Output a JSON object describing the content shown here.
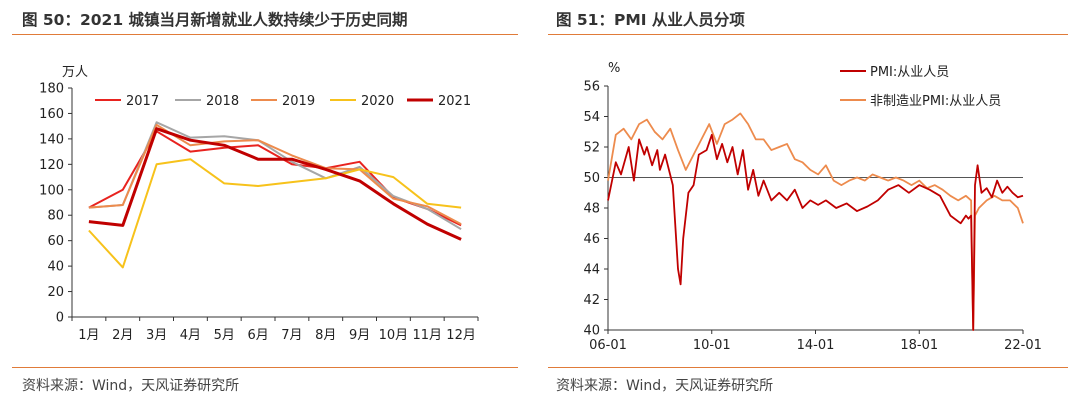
{
  "left_panel": {
    "title": "图 50：2021 城镇当月新增就业人数持续少于历史同期",
    "source": "资料来源：Wind，天风证券研究所"
  },
  "right_panel": {
    "title": "图 51：PMI 从业人员分项",
    "source": "资料来源：Wind，天风证券研究所"
  },
  "colors": {
    "accent_rule": "#e07b39",
    "s2017": "#e8231f",
    "s2018": "#a6a6a6",
    "s2019": "#ed8b4d",
    "s2020": "#f7c21b",
    "s2021": "#c00000",
    "pmi": "#c00000",
    "nonmfg": "#ed8b4d"
  },
  "chart_data": [
    {
      "type": "line",
      "ylabel": "万人",
      "ylim": [
        0,
        180
      ],
      "yticks": [
        0,
        20,
        40,
        60,
        80,
        100,
        120,
        140,
        160,
        180
      ],
      "categories": [
        "1月",
        "2月",
        "3月",
        "4月",
        "5月",
        "6月",
        "7月",
        "8月",
        "9月",
        "10月",
        "11月",
        "12月"
      ],
      "grid": false,
      "legend": "top",
      "series": [
        {
          "name": "2017",
          "values": [
            86,
            100,
            146,
            130,
            133,
            135,
            120,
            117,
            122,
            94,
            85,
            72
          ]
        },
        {
          "name": "2018",
          "values": [
            86,
            88,
            153,
            141,
            142,
            139,
            122,
            109,
            118,
            95,
            85,
            69
          ]
        },
        {
          "name": "2019",
          "values": [
            86,
            88,
            151,
            135,
            138,
            139,
            127,
            117,
            116,
            93,
            87,
            73
          ]
        },
        {
          "name": "2020",
          "values": [
            68,
            39,
            120,
            124,
            105,
            103,
            106,
            109,
            116,
            110,
            89,
            86
          ]
        },
        {
          "name": "2021",
          "values": [
            75,
            72,
            148,
            139,
            135,
            124,
            124,
            116,
            107,
            89,
            73,
            61
          ]
        }
      ]
    },
    {
      "type": "line",
      "ylabel": "%",
      "ylim": [
        40,
        56
      ],
      "yticks": [
        40,
        42,
        44,
        46,
        48,
        50,
        52,
        54,
        56
      ],
      "xlim": [
        2006.0,
        2022.0
      ],
      "xticks": [
        "06-01",
        "10-01",
        "14-01",
        "18-01",
        "22-01"
      ],
      "xtick_values": [
        2006,
        2010,
        2014,
        2018,
        2022
      ],
      "reference_line": 50,
      "grid": false,
      "legend": "top-right",
      "series": [
        {
          "name": "PMI:从业人员",
          "x": [
            2006.0,
            2006.3,
            2006.5,
            2006.8,
            2007.0,
            2007.2,
            2007.4,
            2007.5,
            2007.7,
            2007.9,
            2008.0,
            2008.2,
            2008.5,
            2008.7,
            2008.8,
            2008.9,
            2009.1,
            2009.3,
            2009.5,
            2009.8,
            2010.0,
            2010.2,
            2010.4,
            2010.6,
            2010.8,
            2011.0,
            2011.2,
            2011.4,
            2011.6,
            2011.8,
            2012.0,
            2012.3,
            2012.6,
            2012.9,
            2013.2,
            2013.5,
            2013.8,
            2014.1,
            2014.4,
            2014.8,
            2015.2,
            2015.6,
            2016.0,
            2016.4,
            2016.8,
            2017.2,
            2017.6,
            2018.0,
            2018.4,
            2018.8,
            2019.2,
            2019.6,
            2019.8,
            2019.9,
            2020.0,
            2020.08,
            2020.15,
            2020.25,
            2020.4,
            2020.6,
            2020.8,
            2021.0,
            2021.2,
            2021.4,
            2021.6,
            2021.8,
            2022.0
          ],
          "values": [
            48.5,
            51.0,
            50.2,
            52.0,
            49.8,
            52.5,
            51.5,
            52.0,
            50.8,
            51.8,
            50.5,
            51.5,
            49.5,
            44.0,
            43.0,
            46.0,
            49.0,
            49.5,
            51.5,
            51.8,
            52.8,
            51.2,
            52.2,
            51.0,
            52.0,
            50.2,
            51.8,
            49.2,
            50.5,
            48.8,
            49.8,
            48.5,
            49.0,
            48.5,
            49.2,
            48.0,
            48.5,
            48.2,
            48.5,
            48.0,
            48.3,
            47.8,
            48.1,
            48.5,
            49.2,
            49.5,
            49.0,
            49.5,
            49.2,
            48.8,
            47.5,
            47.0,
            47.5,
            47.3,
            47.5,
            40.0,
            49.5,
            50.8,
            49.0,
            49.3,
            48.7,
            49.8,
            49.0,
            49.4,
            49.0,
            48.7,
            48.8
          ]
        },
        {
          "name": "非制造业PMI:从业人员",
          "x": [
            2006.0,
            2006.3,
            2006.6,
            2006.9,
            2007.2,
            2007.5,
            2007.8,
            2008.1,
            2008.4,
            2008.7,
            2009.0,
            2009.3,
            2009.6,
            2009.9,
            2010.2,
            2010.5,
            2010.8,
            2011.1,
            2011.4,
            2011.7,
            2012.0,
            2012.3,
            2012.6,
            2012.9,
            2013.2,
            2013.5,
            2013.8,
            2014.1,
            2014.4,
            2014.7,
            2015.0,
            2015.3,
            2015.6,
            2015.9,
            2016.2,
            2016.5,
            2016.8,
            2017.1,
            2017.4,
            2017.7,
            2018.0,
            2018.3,
            2018.6,
            2018.9,
            2019.2,
            2019.5,
            2019.8,
            2020.0,
            2020.08,
            2020.15,
            2020.3,
            2020.6,
            2020.9,
            2021.2,
            2021.5,
            2021.8,
            2022.0
          ],
          "values": [
            49.8,
            52.8,
            53.2,
            52.5,
            53.5,
            53.8,
            53.0,
            52.5,
            53.2,
            51.8,
            50.5,
            51.5,
            52.5,
            53.5,
            52.2,
            53.5,
            53.8,
            54.2,
            53.5,
            52.5,
            52.5,
            51.8,
            52.0,
            52.2,
            51.2,
            51.0,
            50.5,
            50.2,
            50.8,
            49.8,
            49.5,
            49.8,
            50.0,
            49.8,
            50.2,
            50.0,
            49.8,
            50.0,
            49.8,
            49.5,
            49.8,
            49.3,
            49.5,
            49.2,
            48.8,
            48.5,
            48.8,
            48.5,
            40.0,
            47.5,
            48.0,
            48.5,
            48.8,
            48.5,
            48.5,
            48.0,
            47.0
          ]
        }
      ]
    }
  ]
}
